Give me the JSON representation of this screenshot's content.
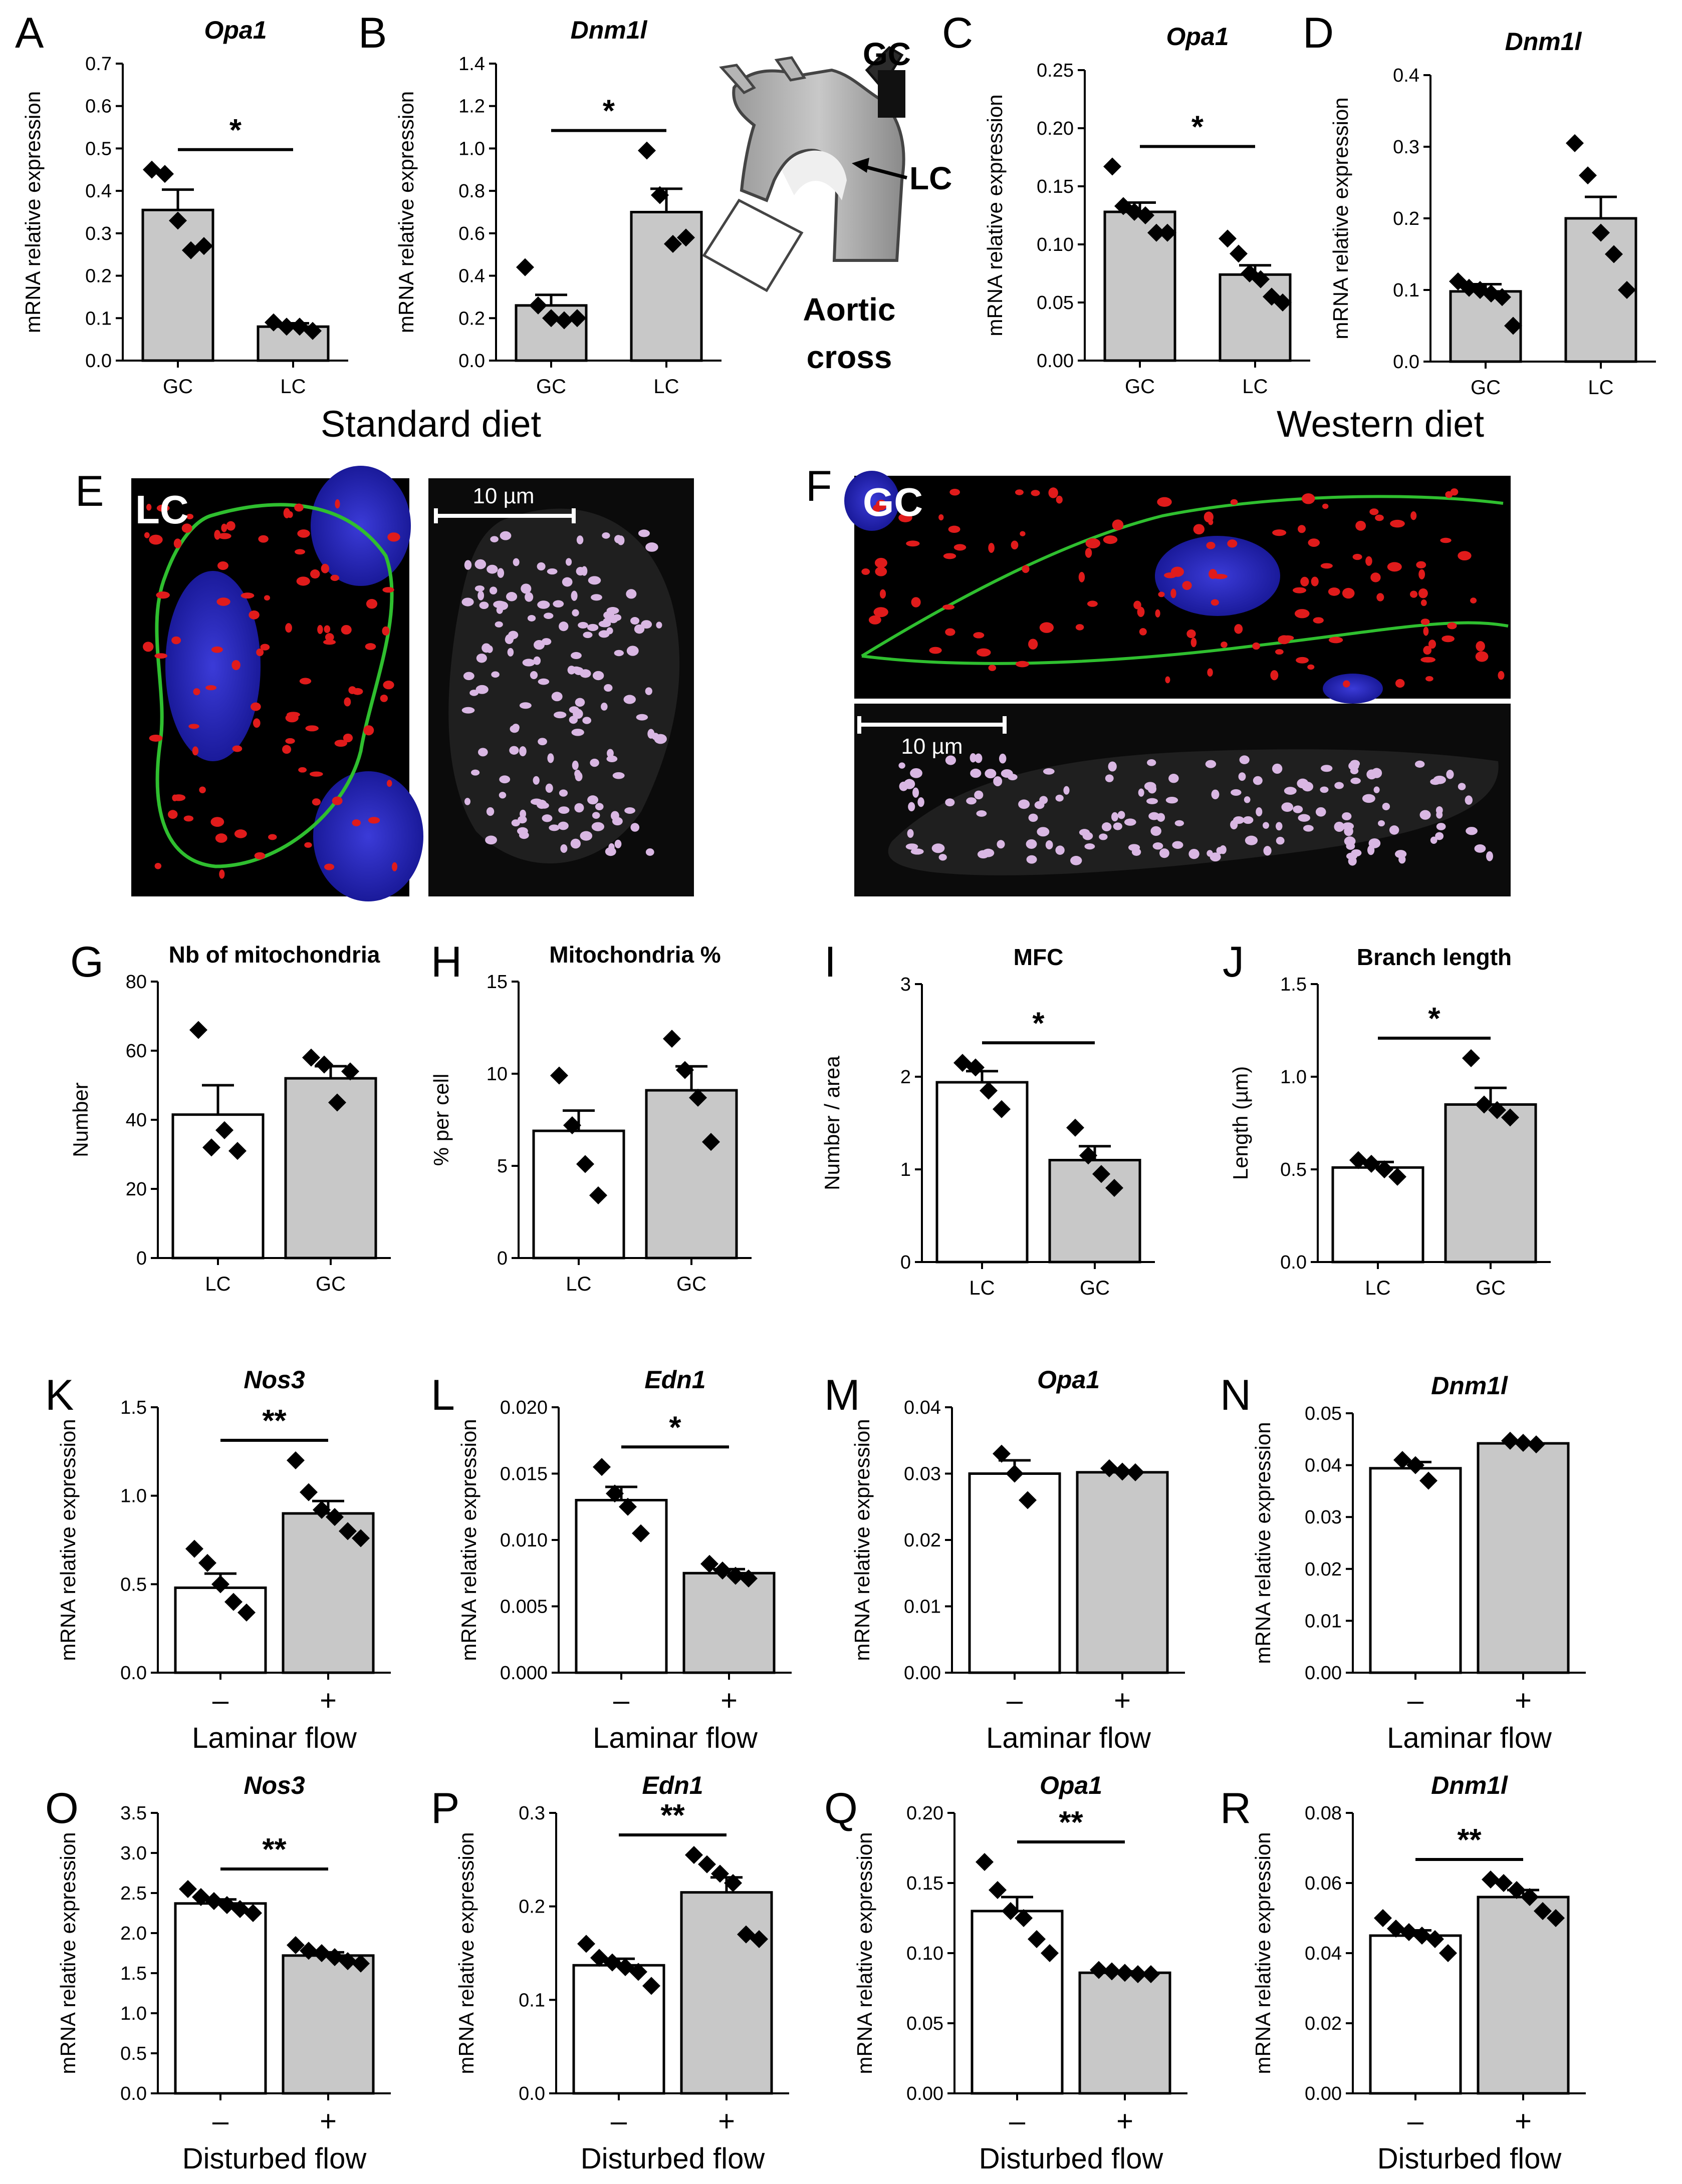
{
  "diet_labels": {
    "standard": "Standard diet",
    "western": "Western diet"
  },
  "aortic_diagram": {
    "line1": "Aortic",
    "line2": "cross",
    "gc": "GC",
    "lc": "LC"
  },
  "micrographs": {
    "E": {
      "panel": "E",
      "overlay": "LC",
      "scale": "10 µm"
    },
    "F": {
      "panel": "F",
      "overlay": "GC",
      "scale": "10 µm"
    }
  },
  "chart_data": [
    {
      "panel": "A",
      "type": "bar",
      "title": "Opa1",
      "italic": true,
      "ylabel": "mRNA relative expression",
      "yticks": [
        "0.0",
        "0.1",
        "0.2",
        "0.3",
        "0.4",
        "0.5",
        "0.6",
        "0.7"
      ],
      "ylim": [
        0,
        0.7
      ],
      "categories": [
        "GC",
        "LC"
      ],
      "values": [
        0.355,
        0.08
      ],
      "sem": [
        0.048,
        0.008
      ],
      "fills": [
        "#c8c8c8",
        "#c8c8c8"
      ],
      "points": [
        [
          0.45,
          0.44,
          0.33,
          0.26,
          0.27
        ],
        [
          0.09,
          0.08,
          0.08,
          0.07
        ]
      ],
      "sig": "*",
      "xlabel": ""
    },
    {
      "panel": "B",
      "type": "bar",
      "title": "Dnm1l",
      "italic": true,
      "ylabel": "mRNA relative expression",
      "yticks": [
        "0.0",
        "0.2",
        "0.4",
        "0.6",
        "0.8",
        "1.0",
        "1.2",
        "1.4"
      ],
      "ylim": [
        0,
        1.4
      ],
      "categories": [
        "GC",
        "LC"
      ],
      "values": [
        0.26,
        0.7
      ],
      "sem": [
        0.05,
        0.11
      ],
      "fills": [
        "#c8c8c8",
        "#c8c8c8"
      ],
      "points": [
        [
          0.44,
          0.26,
          0.2,
          0.19,
          0.2
        ],
        [
          0.99,
          0.78,
          0.55,
          0.58
        ]
      ],
      "sig": "*",
      "xlabel": ""
    },
    {
      "panel": "C",
      "type": "bar",
      "title": "Opa1",
      "italic": true,
      "ylabel": "mRNA relative expression",
      "yticks": [
        "0.00",
        "0.05",
        "0.10",
        "0.15",
        "0.20",
        "0.25"
      ],
      "ylim": [
        0,
        0.25
      ],
      "categories": [
        "GC",
        "LC"
      ],
      "values": [
        0.128,
        0.074
      ],
      "sem": [
        0.008,
        0.008
      ],
      "fills": [
        "#c8c8c8",
        "#c8c8c8"
      ],
      "points": [
        [
          0.167,
          0.133,
          0.128,
          0.125,
          0.11,
          0.11
        ],
        [
          0.105,
          0.092,
          0.075,
          0.07,
          0.055,
          0.05
        ]
      ],
      "sig": "*",
      "xlabel": ""
    },
    {
      "panel": "D",
      "type": "bar",
      "title": "Dnm1l",
      "italic": true,
      "ylabel": "mRNA relative expression",
      "yticks": [
        "0.0",
        "0.1",
        "0.2",
        "0.3",
        "0.4"
      ],
      "ylim": [
        0,
        0.4
      ],
      "categories": [
        "GC",
        "LC"
      ],
      "values": [
        0.098,
        0.2
      ],
      "sem": [
        0.01,
        0.03
      ],
      "fills": [
        "#c8c8c8",
        "#c8c8c8"
      ],
      "points": [
        [
          0.112,
          0.103,
          0.1,
          0.095,
          0.09,
          0.05
        ],
        [
          0.305,
          0.26,
          0.18,
          0.15,
          0.1
        ]
      ],
      "sig": "",
      "xlabel": ""
    },
    {
      "panel": "G",
      "type": "bar",
      "title": "Nb of mitochondria",
      "italic": false,
      "ylabel": "Number",
      "yticks": [
        "0",
        "20",
        "40",
        "60",
        "80"
      ],
      "ylim": [
        0,
        80
      ],
      "categories": [
        "LC",
        "GC"
      ],
      "values": [
        41.5,
        52
      ],
      "sem": [
        8.5,
        3.5
      ],
      "fills": [
        "#ffffff",
        "#c8c8c8"
      ],
      "points": [
        [
          66,
          32,
          37,
          31
        ],
        [
          58,
          56,
          45,
          54
        ]
      ],
      "sig": "",
      "xlabel": ""
    },
    {
      "panel": "H",
      "type": "bar",
      "title": "Mitochondria %",
      "italic": false,
      "ylabel": "% per cell",
      "yticks": [
        "0",
        "5",
        "10",
        "15"
      ],
      "ylim": [
        0,
        15
      ],
      "categories": [
        "LC",
        "GC"
      ],
      "values": [
        6.9,
        9.1
      ],
      "sem": [
        1.1,
        1.3
      ],
      "fills": [
        "#ffffff",
        "#c8c8c8"
      ],
      "points": [
        [
          9.9,
          7.2,
          5.1,
          3.4
        ],
        [
          11.9,
          10.2,
          8.7,
          6.3
        ]
      ],
      "sig": "",
      "xlabel": ""
    },
    {
      "panel": "I",
      "type": "bar",
      "title": "MFC",
      "italic": false,
      "ylabel": "Number / area",
      "yticks": [
        "0",
        "1",
        "2",
        "3"
      ],
      "ylim": [
        0,
        3
      ],
      "categories": [
        "LC",
        "GC"
      ],
      "values": [
        1.94,
        1.1
      ],
      "sem": [
        0.12,
        0.15
      ],
      "fills": [
        "#ffffff",
        "#c8c8c8"
      ],
      "points": [
        [
          2.15,
          2.1,
          1.85,
          1.65
        ],
        [
          1.45,
          1.15,
          0.95,
          0.8
        ]
      ],
      "sig": "*",
      "xlabel": ""
    },
    {
      "panel": "J",
      "type": "bar",
      "title": "Branch length",
      "italic": false,
      "ylabel": "Length (µm)",
      "yticks": [
        "0.0",
        "0.5",
        "1.0",
        "1.5"
      ],
      "ylim": [
        0,
        1.5
      ],
      "categories": [
        "LC",
        "GC"
      ],
      "values": [
        0.51,
        0.85
      ],
      "sem": [
        0.03,
        0.09
      ],
      "fills": [
        "#ffffff",
        "#c8c8c8"
      ],
      "points": [
        [
          0.55,
          0.53,
          0.5,
          0.46
        ],
        [
          1.1,
          0.85,
          0.82,
          0.78
        ]
      ],
      "sig": "*",
      "xlabel": ""
    },
    {
      "panel": "K",
      "type": "bar",
      "title": "Nos3",
      "italic": true,
      "ylabel": "mRNA relative expression",
      "yticks": [
        "0.0",
        "0.5",
        "1.0",
        "1.5"
      ],
      "ylim": [
        0,
        1.5
      ],
      "categories": [
        "–",
        "+"
      ],
      "values": [
        0.48,
        0.9
      ],
      "sem": [
        0.08,
        0.07
      ],
      "fills": [
        "#ffffff",
        "#c8c8c8"
      ],
      "points": [
        [
          0.7,
          0.62,
          0.5,
          0.4,
          0.34
        ],
        [
          1.2,
          1.02,
          0.92,
          0.88,
          0.8,
          0.76
        ]
      ],
      "sig": "**",
      "xlabel": "Laminar flow"
    },
    {
      "panel": "L",
      "type": "bar",
      "title": "Edn1",
      "italic": true,
      "ylabel": "mRNA relative expression",
      "yticks": [
        "0.000",
        "0.005",
        "0.010",
        "0.015",
        "0.020"
      ],
      "ylim": [
        0,
        0.02
      ],
      "categories": [
        "–",
        "+"
      ],
      "values": [
        0.013,
        0.0075
      ],
      "sem": [
        0.001,
        0.0003
      ],
      "fills": [
        "#ffffff",
        "#c8c8c8"
      ],
      "points": [
        [
          0.0155,
          0.0135,
          0.0125,
          0.0105
        ],
        [
          0.0082,
          0.0077,
          0.0073,
          0.0071
        ]
      ],
      "sig": "*",
      "xlabel": "Laminar flow"
    },
    {
      "panel": "M",
      "type": "bar",
      "title": "Opa1",
      "italic": true,
      "ylabel": "mRNA relative expression",
      "yticks": [
        "0.00",
        "0.01",
        "0.02",
        "0.03",
        "0.04"
      ],
      "ylim": [
        0,
        0.04
      ],
      "categories": [
        "–",
        "+"
      ],
      "values": [
        0.03,
        0.0302
      ],
      "sem": [
        0.002,
        0.0003
      ],
      "fills": [
        "#ffffff",
        "#c8c8c8"
      ],
      "points": [
        [
          0.033,
          0.03,
          0.026
        ],
        [
          0.0308,
          0.0303,
          0.0302
        ]
      ],
      "sig": "",
      "xlabel": "Laminar flow"
    },
    {
      "panel": "N",
      "type": "bar",
      "title": "Dnm1l",
      "italic": true,
      "ylabel": "mRNA relative expression",
      "yticks": [
        "0.00",
        "0.01",
        "0.02",
        "0.03",
        "0.04",
        "0.05"
      ],
      "ylim": [
        0,
        0.05
      ],
      "categories": [
        "–",
        "+"
      ],
      "values": [
        0.0394,
        0.0442
      ],
      "sem": [
        0.0012,
        0.0002
      ],
      "fills": [
        "#ffffff",
        "#c8c8c8"
      ],
      "points": [
        [
          0.041,
          0.04,
          0.037
        ],
        [
          0.0447,
          0.0443,
          0.044
        ]
      ],
      "sig": "",
      "xlabel": "Laminar flow"
    },
    {
      "panel": "O",
      "type": "bar",
      "title": "Nos3",
      "italic": true,
      "ylabel": "mRNA relative expression",
      "yticks": [
        "0.0",
        "0.5",
        "1.0",
        "1.5",
        "2.0",
        "2.5",
        "3.0",
        "3.5"
      ],
      "ylim": [
        0,
        3.5
      ],
      "categories": [
        "–",
        "+"
      ],
      "values": [
        2.37,
        1.72
      ],
      "sem": [
        0.05,
        0.04
      ],
      "fills": [
        "#ffffff",
        "#c8c8c8"
      ],
      "points": [
        [
          2.55,
          2.45,
          2.4,
          2.35,
          2.3,
          2.25
        ],
        [
          1.85,
          1.78,
          1.75,
          1.7,
          1.65,
          1.62
        ]
      ],
      "sig": "**",
      "xlabel": "Disturbed flow"
    },
    {
      "panel": "P",
      "type": "bar",
      "title": "Edn1",
      "italic": true,
      "ylabel": "mRNA relative expression",
      "yticks": [
        "0.0",
        "0.1",
        "0.2",
        "0.3"
      ],
      "ylim": [
        0,
        0.3
      ],
      "categories": [
        "–",
        "+"
      ],
      "values": [
        0.137,
        0.215
      ],
      "sem": [
        0.007,
        0.016
      ],
      "fills": [
        "#ffffff",
        "#c8c8c8"
      ],
      "points": [
        [
          0.16,
          0.145,
          0.14,
          0.135,
          0.13,
          0.115
        ],
        [
          0.255,
          0.245,
          0.235,
          0.225,
          0.17,
          0.165
        ]
      ],
      "sig": "**",
      "xlabel": "Disturbed flow"
    },
    {
      "panel": "Q",
      "type": "bar",
      "title": "Opa1",
      "italic": true,
      "ylabel": "mRNA relative expression",
      "yticks": [
        "0.00",
        "0.05",
        "0.10",
        "0.15",
        "0.20"
      ],
      "ylim": [
        0,
        0.2
      ],
      "categories": [
        "–",
        "+"
      ],
      "values": [
        0.13,
        0.086
      ],
      "sem": [
        0.01,
        0.001
      ],
      "fills": [
        "#ffffff",
        "#c8c8c8"
      ],
      "points": [
        [
          0.165,
          0.145,
          0.13,
          0.125,
          0.11,
          0.1
        ],
        [
          0.088,
          0.087,
          0.086,
          0.085,
          0.085
        ]
      ],
      "sig": "**",
      "xlabel": "Disturbed flow"
    },
    {
      "panel": "R",
      "type": "bar",
      "title": "Dnm1l",
      "italic": true,
      "ylabel": "mRNA relative expression",
      "yticks": [
        "0.00",
        "0.02",
        "0.04",
        "0.06",
        "0.08"
      ],
      "ylim": [
        0,
        0.08
      ],
      "categories": [
        "–",
        "+"
      ],
      "values": [
        0.045,
        0.056
      ],
      "sem": [
        0.0015,
        0.002
      ],
      "fills": [
        "#ffffff",
        "#c8c8c8"
      ],
      "points": [
        [
          0.05,
          0.047,
          0.046,
          0.045,
          0.044,
          0.04
        ],
        [
          0.061,
          0.06,
          0.058,
          0.056,
          0.052,
          0.05
        ]
      ],
      "sig": "**",
      "xlabel": "Disturbed flow"
    }
  ]
}
